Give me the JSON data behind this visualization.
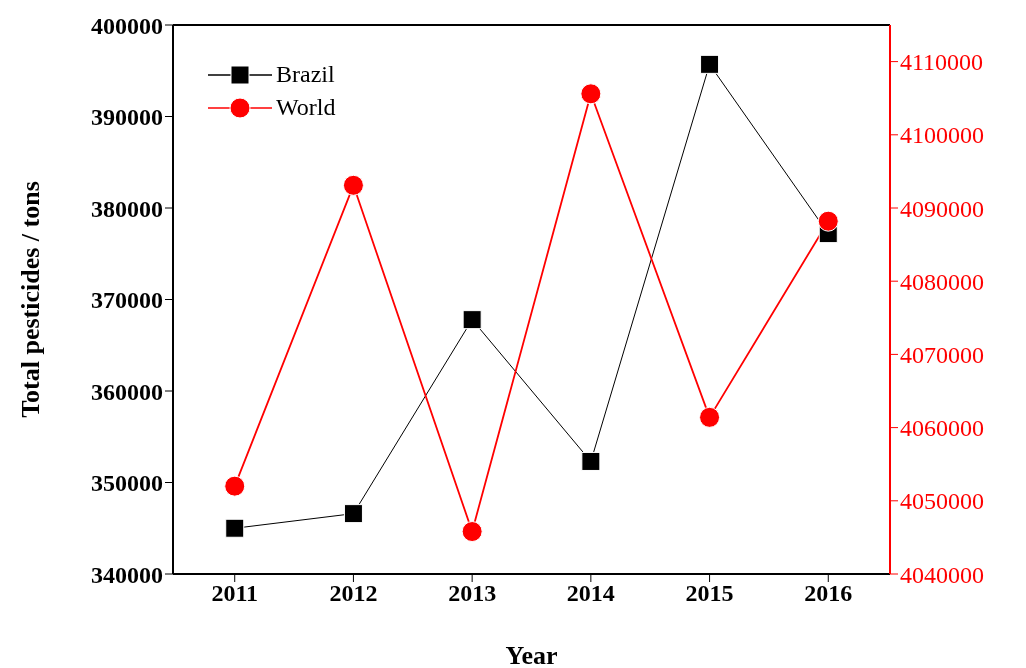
{
  "chart_data": {
    "type": "line",
    "xlabel": "Year",
    "ylabel": "Total pesticides / tons",
    "categories": [
      "2011",
      "2012",
      "2013",
      "2014",
      "2015",
      "2016"
    ],
    "series": [
      {
        "name": "Brazil",
        "color": "#000000",
        "marker": "square",
        "values": [
          345000,
          346600,
          367800,
          352300,
          395700,
          377200
        ]
      },
      {
        "name": "World",
        "color": "#ff0000",
        "marker": "circle",
        "axis": "y2",
        "values": [
          4052000,
          4093100,
          4045800,
          4105600,
          4061400,
          4088200
        ]
      }
    ],
    "ylim": [
      340000,
      400000
    ],
    "yticks": [
      340000,
      350000,
      360000,
      370000,
      380000,
      390000,
      400000
    ],
    "y2lim": [
      4040000,
      4115000
    ],
    "y2ticks": [
      4040000,
      4050000,
      4060000,
      4070000,
      4080000,
      4090000,
      4100000,
      4110000
    ],
    "legend": "top left",
    "line_style": "solid"
  }
}
